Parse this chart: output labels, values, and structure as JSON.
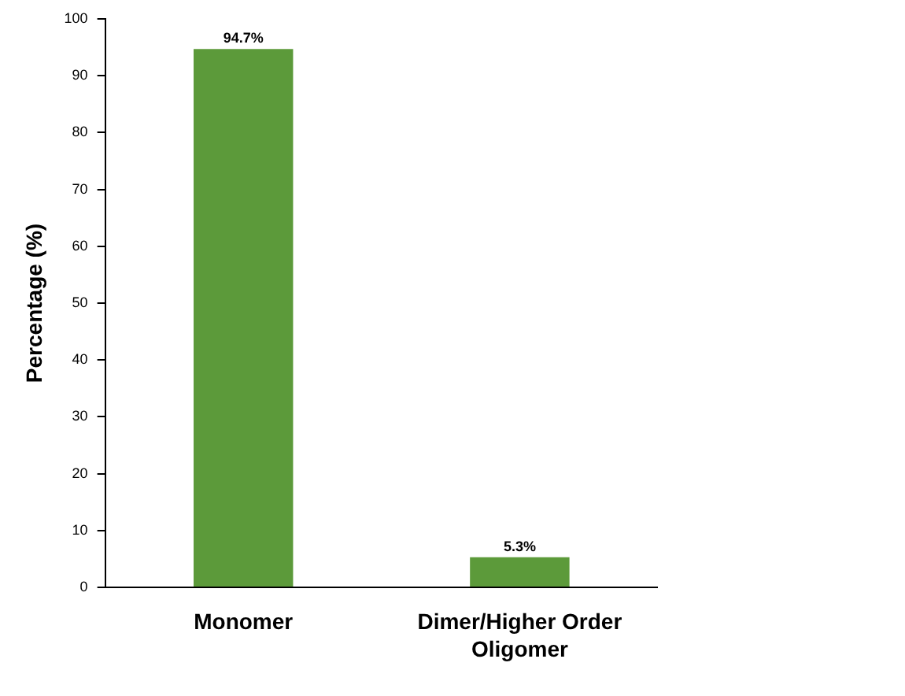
{
  "chart_data": {
    "type": "bar",
    "ylabel": "Percentage (%)",
    "categories": [
      "Monomer",
      "Dimer/Higher Order Oligomer"
    ],
    "values": [
      94.7,
      5.3
    ],
    "value_labels": [
      "94.7%",
      "5.3%"
    ],
    "color": "#5c9a3a",
    "ylim": [
      0,
      100
    ],
    "yticks": [
      0,
      10,
      20,
      30,
      40,
      50,
      60,
      70,
      80,
      90,
      100
    ],
    "grid": false,
    "legend": false
  }
}
